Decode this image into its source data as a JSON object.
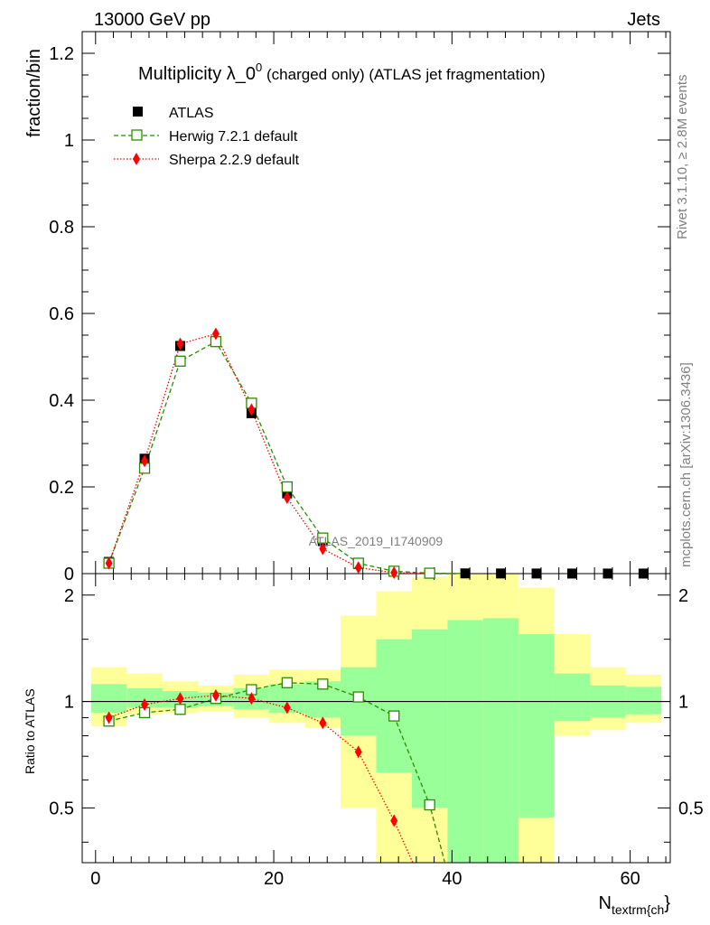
{
  "header": {
    "left": "13000 GeV pp",
    "right": "Jets"
  },
  "title": {
    "main": "Multiplicity λ_0",
    "sup": "0",
    "suffix": " (charged only) (ATLAS jet fragmentation)"
  },
  "side_text": {
    "rivet": "Rivet 3.1.10, ≥ 2.8M events",
    "mcplots": "mcplots.cern.ch [arXiv:1306.3436]"
  },
  "watermark": "ATLAS_2019_I1740909",
  "x_label": {
    "main": "N",
    "sub": "textrm{ch",
    "close": "}"
  },
  "colors": {
    "herwig": "#2e8b00",
    "sherpa": "#ff0000",
    "atlas": "#000000",
    "band_yellow": "#ffff99",
    "band_green": "#99ff99"
  },
  "chart_data": [
    {
      "type": "scatter",
      "panel": "main",
      "ylabel": "fraction/bin",
      "xlim": [
        -1.5,
        64.5
      ],
      "ylim": [
        0,
        1.25
      ],
      "yticks": [
        0,
        0.2,
        0.4,
        0.6,
        0.8,
        1,
        1.2
      ],
      "ytick_labels": [
        "0",
        "0.2",
        "0.4",
        "0.6",
        "0.8",
        "1",
        "1.2"
      ],
      "x": [
        1.5,
        5.5,
        9.5,
        13.5,
        17.5,
        21.5,
        25.5,
        29.5,
        33.5,
        37.5,
        41.5,
        45.5,
        49.5,
        53.5,
        57.5,
        61.5
      ],
      "legend": [
        "ATLAS",
        "Herwig 7.2.1 default",
        "Sherpa 2.2.9 default"
      ],
      "series": [
        {
          "name": "ATLAS",
          "values": [
            0.027,
            0.265,
            0.525,
            0.535,
            0.37,
            0.185,
            0.075,
            0.022,
            0.006,
            0.0015,
            0.0005,
            0.0003,
            0.0002,
            0.0001,
            0.0001,
            0.0001
          ]
        },
        {
          "name": "Herwig 7.2.1 default",
          "values": [
            0.024,
            0.243,
            0.49,
            0.535,
            0.393,
            0.2,
            0.082,
            0.024,
            0.0055,
            0.001,
            0.0002
          ]
        },
        {
          "name": "Sherpa 2.2.9 default",
          "values": [
            0.024,
            0.26,
            0.53,
            0.553,
            0.378,
            0.175,
            0.057,
            0.014,
            0.002,
            0.0003
          ]
        }
      ]
    },
    {
      "type": "line",
      "panel": "ratio",
      "ylabel": "Ratio to ATLAS",
      "xlim": [
        -1.5,
        64.5
      ],
      "ylim": [
        0.35,
        2.3
      ],
      "yticks": [
        0.5,
        1,
        2
      ],
      "ytick_labels": [
        "0.5",
        "1",
        "2"
      ],
      "xticks": [
        0,
        20,
        40,
        60
      ],
      "xtick_labels": [
        "0",
        "20",
        "40",
        "60"
      ],
      "bins": [
        [
          -0.5,
          3.5
        ],
        [
          3.5,
          7.5
        ],
        [
          7.5,
          11.5
        ],
        [
          11.5,
          15.5
        ],
        [
          15.5,
          19.5
        ],
        [
          19.5,
          23.5
        ],
        [
          23.5,
          27.5
        ],
        [
          27.5,
          31.5
        ],
        [
          31.5,
          35.5
        ],
        [
          35.5,
          39.5
        ],
        [
          39.5,
          43.5
        ],
        [
          43.5,
          47.5
        ],
        [
          47.5,
          51.5
        ],
        [
          51.5,
          55.5
        ],
        [
          55.5,
          59.5
        ],
        [
          59.5,
          63.5
        ]
      ],
      "band_yellow": [
        [
          0.85,
          1.25
        ],
        [
          0.92,
          1.2
        ],
        [
          0.93,
          1.14
        ],
        [
          0.94,
          1.11
        ],
        [
          0.9,
          1.19
        ],
        [
          0.87,
          1.23
        ],
        [
          0.84,
          1.23
        ],
        [
          0.5,
          1.75
        ],
        [
          0.35,
          2.05
        ],
        [
          0.35,
          2.25
        ],
        [
          0.35,
          2.57
        ],
        [
          0.35,
          2.7
        ],
        [
          0.35,
          2.1
        ],
        [
          0.8,
          1.55
        ],
        [
          0.83,
          1.25
        ],
        [
          0.87,
          1.19
        ]
      ],
      "band_green": [
        [
          0.93,
          1.12
        ],
        [
          0.96,
          1.09
        ],
        [
          0.96,
          1.07
        ],
        [
          0.97,
          1.06
        ],
        [
          0.95,
          1.09
        ],
        [
          0.93,
          1.12
        ],
        [
          0.9,
          1.14
        ],
        [
          0.8,
          1.25
        ],
        [
          0.63,
          1.5
        ],
        [
          0.5,
          1.6
        ],
        [
          0.35,
          1.7
        ],
        [
          0.35,
          1.72
        ],
        [
          0.47,
          1.55
        ],
        [
          0.88,
          1.2
        ],
        [
          0.9,
          1.11
        ],
        [
          0.92,
          1.1
        ]
      ],
      "series": [
        {
          "name": "Herwig 7.2.1 default",
          "x": [
            1.5,
            5.5,
            9.5,
            13.5,
            17.5,
            21.5,
            25.5,
            29.5,
            33.5,
            37.5,
            39.2
          ],
          "values": [
            0.88,
            0.93,
            0.95,
            1.02,
            1.08,
            1.13,
            1.12,
            1.03,
            0.91,
            0.51,
            0.35
          ]
        },
        {
          "name": "Sherpa 2.2.9 default",
          "x": [
            1.5,
            5.5,
            9.5,
            13.5,
            17.5,
            21.5,
            25.5,
            29.5,
            33.5,
            35.6
          ],
          "values": [
            0.9,
            0.98,
            1.02,
            1.04,
            1.02,
            0.96,
            0.87,
            0.72,
            0.46,
            0.35
          ]
        }
      ]
    }
  ]
}
